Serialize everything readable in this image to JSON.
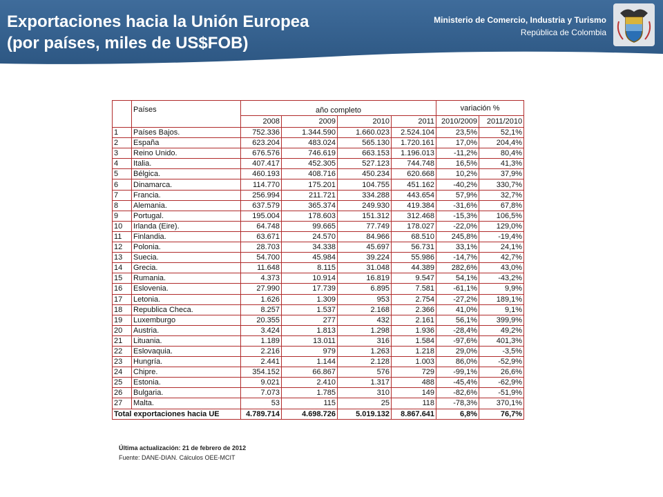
{
  "header": {
    "title_line1": "Exportaciones hacia la Unión Europea",
    "title_line2": "(por países, miles de US$FOB)",
    "ministry": "Ministerio de Comercio, Industria y Turismo",
    "country": "República de Colombia"
  },
  "table": {
    "col_countries": "Países",
    "group_year": "año completo",
    "group_var": "variación %",
    "years": [
      "2008",
      "2009",
      "2010",
      "2011",
      "2010/2009",
      "2011/2010"
    ],
    "rows": [
      [
        "1",
        "Países Bajos.",
        "752.336",
        "1.344.590",
        "1.660.023",
        "2.524.104",
        "23,5%",
        "52,1%"
      ],
      [
        "2",
        "España",
        "623.204",
        "483.024",
        "565.130",
        "1.720.161",
        "17,0%",
        "204,4%"
      ],
      [
        "3",
        "Reino Unido.",
        "676.576",
        "746.619",
        "663.153",
        "1.196.013",
        "-11,2%",
        "80,4%"
      ],
      [
        "4",
        "Italia.",
        "407.417",
        "452.305",
        "527.123",
        "744.748",
        "16,5%",
        "41,3%"
      ],
      [
        "5",
        "Bélgica.",
        "460.193",
        "408.716",
        "450.234",
        "620.668",
        "10,2%",
        "37,9%"
      ],
      [
        "6",
        "Dinamarca.",
        "114.770",
        "175.201",
        "104.755",
        "451.162",
        "-40,2%",
        "330,7%"
      ],
      [
        "7",
        "Francia.",
        "256.994",
        "211.721",
        "334.288",
        "443.654",
        "57,9%",
        "32,7%"
      ],
      [
        "8",
        "Alemania.",
        "637.579",
        "365.374",
        "249.930",
        "419.384",
        "-31,6%",
        "67,8%"
      ],
      [
        "9",
        "Portugal.",
        "195.004",
        "178.603",
        "151.312",
        "312.468",
        "-15,3%",
        "106,5%"
      ],
      [
        "10",
        "Irlanda (Eire).",
        "64.748",
        "99.665",
        "77.749",
        "178.027",
        "-22,0%",
        "129,0%"
      ],
      [
        "11",
        "Finlandia.",
        "63.671",
        "24.570",
        "84.966",
        "68.510",
        "245,8%",
        "-19,4%"
      ],
      [
        "12",
        "Polonia.",
        "28.703",
        "34.338",
        "45.697",
        "56.731",
        "33,1%",
        "24,1%"
      ],
      [
        "13",
        "Suecia.",
        "54.700",
        "45.984",
        "39.224",
        "55.986",
        "-14,7%",
        "42,7%"
      ],
      [
        "14",
        "Grecia.",
        "11.648",
        "8.115",
        "31.048",
        "44.389",
        "282,6%",
        "43,0%"
      ],
      [
        "15",
        "Rumania.",
        "4.373",
        "10.914",
        "16.819",
        "9.547",
        "54,1%",
        "-43,2%"
      ],
      [
        "16",
        "Eslovenia.",
        "27.990",
        "17.739",
        "6.895",
        "7.581",
        "-61,1%",
        "9,9%"
      ],
      [
        "17",
        "Letonia.",
        "1.626",
        "1.309",
        "953",
        "2.754",
        "-27,2%",
        "189,1%"
      ],
      [
        "18",
        "Republica Checa.",
        "8.257",
        "1.537",
        "2.168",
        "2.366",
        "41,0%",
        "9,1%"
      ],
      [
        "19",
        "Luxemburgo",
        "20.355",
        "277",
        "432",
        "2.161",
        "56,1%",
        "399,9%"
      ],
      [
        "20",
        "Austria.",
        "3.424",
        "1.813",
        "1.298",
        "1.936",
        "-28,4%",
        "49,2%"
      ],
      [
        "21",
        "Lituania.",
        "1.189",
        "13.011",
        "316",
        "1.584",
        "-97,6%",
        "401,3%"
      ],
      [
        "22",
        "Eslovaquia.",
        "2.216",
        "979",
        "1.263",
        "1.218",
        "29,0%",
        "-3,5%"
      ],
      [
        "23",
        "Hungría.",
        "2.441",
        "1.144",
        "2.128",
        "1.003",
        "86,0%",
        "-52,9%"
      ],
      [
        "24",
        "Chipre.",
        "354.152",
        "66.867",
        "576",
        "729",
        "-99,1%",
        "26,6%"
      ],
      [
        "25",
        "Estonia.",
        "9.021",
        "2.410",
        "1.317",
        "488",
        "-45,4%",
        "-62,9%"
      ],
      [
        "26",
        "Bulgaria.",
        "7.073",
        "1.785",
        "310",
        "149",
        "-82,6%",
        "-51,9%"
      ],
      [
        "27",
        "Malta.",
        "53",
        "115",
        "25",
        "118",
        "-78,3%",
        "370,1%"
      ]
    ],
    "total": [
      "Total exportaciones hacia UE",
      "4.789.714",
      "4.698.726",
      "5.019.132",
      "8.867.641",
      "6,8%",
      "76,7%"
    ]
  },
  "footer": {
    "updated": "Última actualización: 21 de febrero de 2012",
    "source": "Fuente: DANE-DIAN. Cálculos OEE-MCIT"
  }
}
